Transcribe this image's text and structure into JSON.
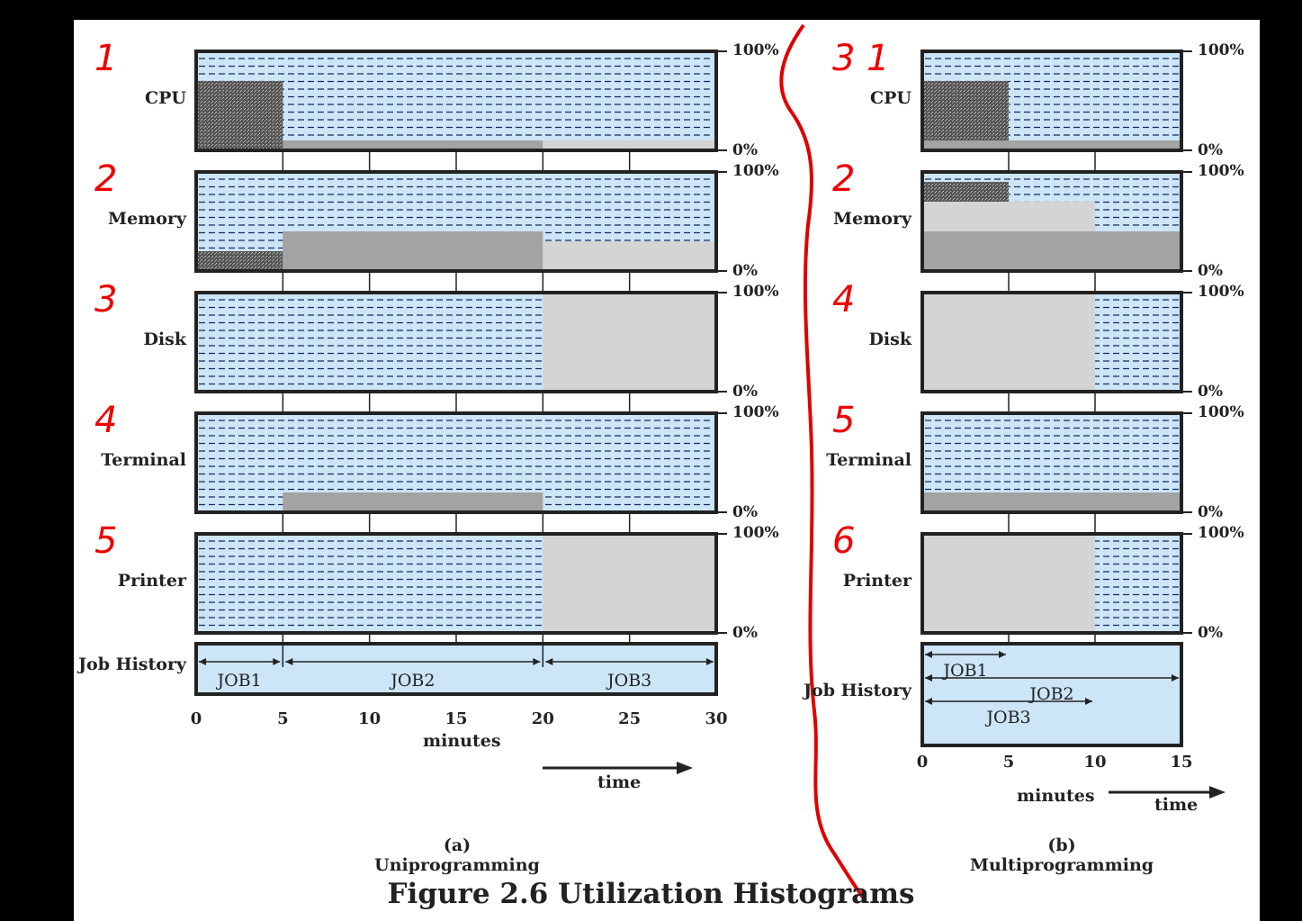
{
  "title": "Figure 2.6  Utilization Histograms",
  "percent_labels": {
    "top": "100%",
    "bottom": "0%"
  },
  "panel_a": {
    "caption": "(a) Uniprogramming",
    "axis_label": "minutes",
    "time_label": "time",
    "ticks": [
      "0",
      "5",
      "10",
      "15",
      "20",
      "25",
      "30"
    ],
    "tick_values": [
      0,
      5,
      10,
      15,
      20,
      25,
      30
    ],
    "x_max": 30,
    "rows": [
      {
        "label": "CPU",
        "annotation": "1"
      },
      {
        "label": "Memory",
        "annotation": "2"
      },
      {
        "label": "Disk",
        "annotation": "3"
      },
      {
        "label": "Terminal",
        "annotation": "4"
      },
      {
        "label": "Printer",
        "annotation": "5"
      }
    ],
    "job_history": {
      "label": "Job History",
      "jobs": [
        {
          "name": "JOB1",
          "start": 0,
          "end": 5
        },
        {
          "name": "JOB2",
          "start": 5,
          "end": 20
        },
        {
          "name": "JOB3",
          "start": 20,
          "end": 30
        }
      ]
    }
  },
  "panel_b": {
    "caption": "(b) Multiprogramming",
    "axis_label": "minutes",
    "time_label": "time",
    "ticks": [
      "0",
      "5",
      "10",
      "15"
    ],
    "tick_values": [
      0,
      5,
      10,
      15
    ],
    "x_max": 15,
    "rows": [
      {
        "label": "CPU",
        "annotation": "3 1"
      },
      {
        "label": "Memory",
        "annotation": "2"
      },
      {
        "label": "Disk",
        "annotation": "4"
      },
      {
        "label": "Terminal",
        "annotation": "5"
      },
      {
        "label": "Printer",
        "annotation": "6"
      }
    ],
    "job_history": {
      "label": "Job History",
      "jobs": [
        {
          "name": "JOB1",
          "start": 0,
          "end": 5
        },
        {
          "name": "JOB2",
          "start": 0,
          "end": 15
        },
        {
          "name": "JOB3",
          "start": 0,
          "end": 10
        }
      ]
    }
  },
  "chart_data": [
    {
      "type": "area",
      "title": "(a) Uniprogramming",
      "xlabel": "minutes",
      "xlim": [
        0,
        30
      ],
      "ylim": [
        0,
        100
      ],
      "series": [
        {
          "name": "CPU",
          "segments": [
            {
              "start": 0,
              "end": 5,
              "value": 70,
              "job": "JOB1"
            },
            {
              "start": 5,
              "end": 20,
              "value": 10,
              "job": "JOB2"
            },
            {
              "start": 20,
              "end": 30,
              "value": 10,
              "job": "JOB3"
            }
          ]
        },
        {
          "name": "Memory",
          "segments": [
            {
              "start": 0,
              "end": 5,
              "value": 20,
              "job": "JOB1"
            },
            {
              "start": 5,
              "end": 20,
              "value": 40,
              "job": "JOB2"
            },
            {
              "start": 20,
              "end": 30,
              "value": 30,
              "job": "JOB3"
            }
          ]
        },
        {
          "name": "Disk",
          "segments": [
            {
              "start": 20,
              "end": 30,
              "value": 100,
              "job": "JOB3"
            }
          ]
        },
        {
          "name": "Terminal",
          "segments": [
            {
              "start": 5,
              "end": 20,
              "value": 20,
              "job": "JOB2"
            }
          ]
        },
        {
          "name": "Printer",
          "segments": [
            {
              "start": 20,
              "end": 30,
              "value": 100,
              "job": "JOB3"
            }
          ]
        }
      ]
    },
    {
      "type": "area",
      "title": "(b) Multiprogramming",
      "xlabel": "minutes",
      "xlim": [
        0,
        15
      ],
      "ylim": [
        0,
        100
      ],
      "series": [
        {
          "name": "CPU",
          "segments": [
            {
              "start": 0,
              "end": 5,
              "value": 70,
              "job": "JOB1"
            },
            {
              "start": 0,
              "end": 10,
              "value": 10,
              "job": "JOB3"
            },
            {
              "start": 0,
              "end": 15,
              "value": 10,
              "job": "JOB2"
            }
          ]
        },
        {
          "name": "Memory",
          "segments": [
            {
              "start": 0,
              "end": 15,
              "value": 40,
              "job": "JOB2"
            },
            {
              "start": 0,
              "end": 10,
              "value": 30,
              "job": "JOB3"
            },
            {
              "start": 0,
              "end": 5,
              "value": 20,
              "job": "JOB1"
            }
          ]
        },
        {
          "name": "Disk",
          "segments": [
            {
              "start": 0,
              "end": 10,
              "value": 100,
              "job": "JOB3"
            }
          ]
        },
        {
          "name": "Terminal",
          "segments": [
            {
              "start": 0,
              "end": 15,
              "value": 20,
              "job": "JOB2"
            }
          ]
        },
        {
          "name": "Printer",
          "segments": [
            {
              "start": 0,
              "end": 10,
              "value": 100,
              "job": "JOB3"
            }
          ]
        }
      ]
    }
  ],
  "colors": {
    "background": "#cce5f7",
    "dash": "#1a2a60",
    "job1": "#666666",
    "job2": "#a3a3a3",
    "job3": "#d4d4d4",
    "frame": "#222222",
    "annotation": "#e00000"
  }
}
